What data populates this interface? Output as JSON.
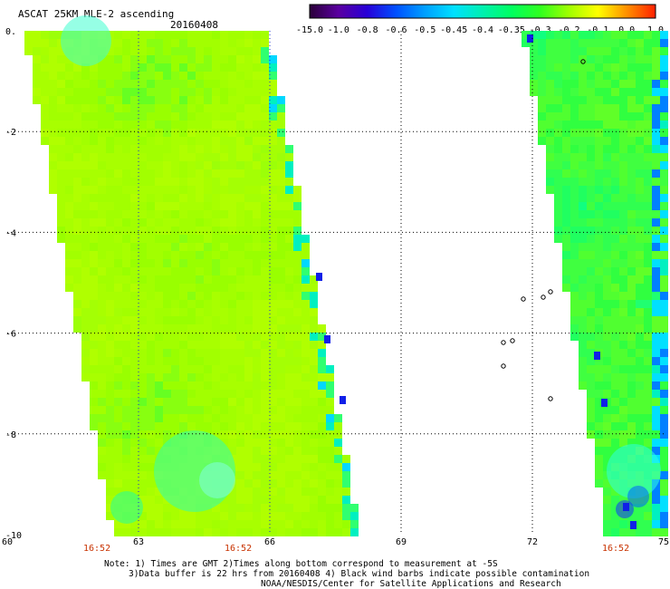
{
  "header": {
    "title": "ASCAT 25KM MLE-2 ascending",
    "date": "20160408"
  },
  "colorbar": {
    "labels": [
      "-15.0",
      "-1.0",
      "-0.8",
      "-0.6",
      "-0.5",
      "-0.45",
      "-0.4",
      "-0.35",
      "-0.3",
      "-0.2",
      "-0.1",
      "0.0",
      "1.0"
    ],
    "colors": [
      "#2a0038",
      "#5a00a0",
      "#2800d8",
      "#0050ff",
      "#00a0ff",
      "#00e0ff",
      "#00f0b0",
      "#00ff60",
      "#30ff20",
      "#a0ff00",
      "#ffff00",
      "#ff9000",
      "#ff2000"
    ]
  },
  "chart_data": {
    "type": "heatmap",
    "title": "ASCAT 25KM MLE-2 ascending",
    "subtitle": "20160408",
    "xlim": [
      60,
      75
    ],
    "ylim": [
      -10,
      0
    ],
    "x_ticks": [
      "60",
      "63",
      "66",
      "69",
      "72",
      "75"
    ],
    "y_ticks": [
      "0.",
      "-2",
      "-4",
      "-6",
      "-8",
      "-10"
    ],
    "grid": true,
    "swaths": [
      {
        "name": "",
        "lon_top_left": 60.5,
        "lon_top_right": 65.9,
        "lon_bottom_left": 62.5,
        "lon_bottom_right": 68.0,
        "dominant_value": "-0.2 to -0.1",
        "edge_value": "-0.4"
      },
      {
        "name": "",
        "lon_top_left": 71.9,
        "lon_top_right": 75,
        "lon_bottom_left": 73.8,
        "lon_bottom_right": 75,
        "dominant_value": "-0.35 to -0.3",
        "edge_value": "-0.6"
      }
    ],
    "time_labels": [
      "16:52",
      "16:52",
      "16:52"
    ]
  },
  "notes": {
    "line1": "Note: 1) Times are GMT 2)Times along bottom correspond to measurement at -5S",
    "line2": "3)Data buffer is 22 hrs from 20160408 4) Black wind barbs indicate possible contamination",
    "line3": "NOAA/NESDIS/Center for Satellite Applications and Research"
  }
}
